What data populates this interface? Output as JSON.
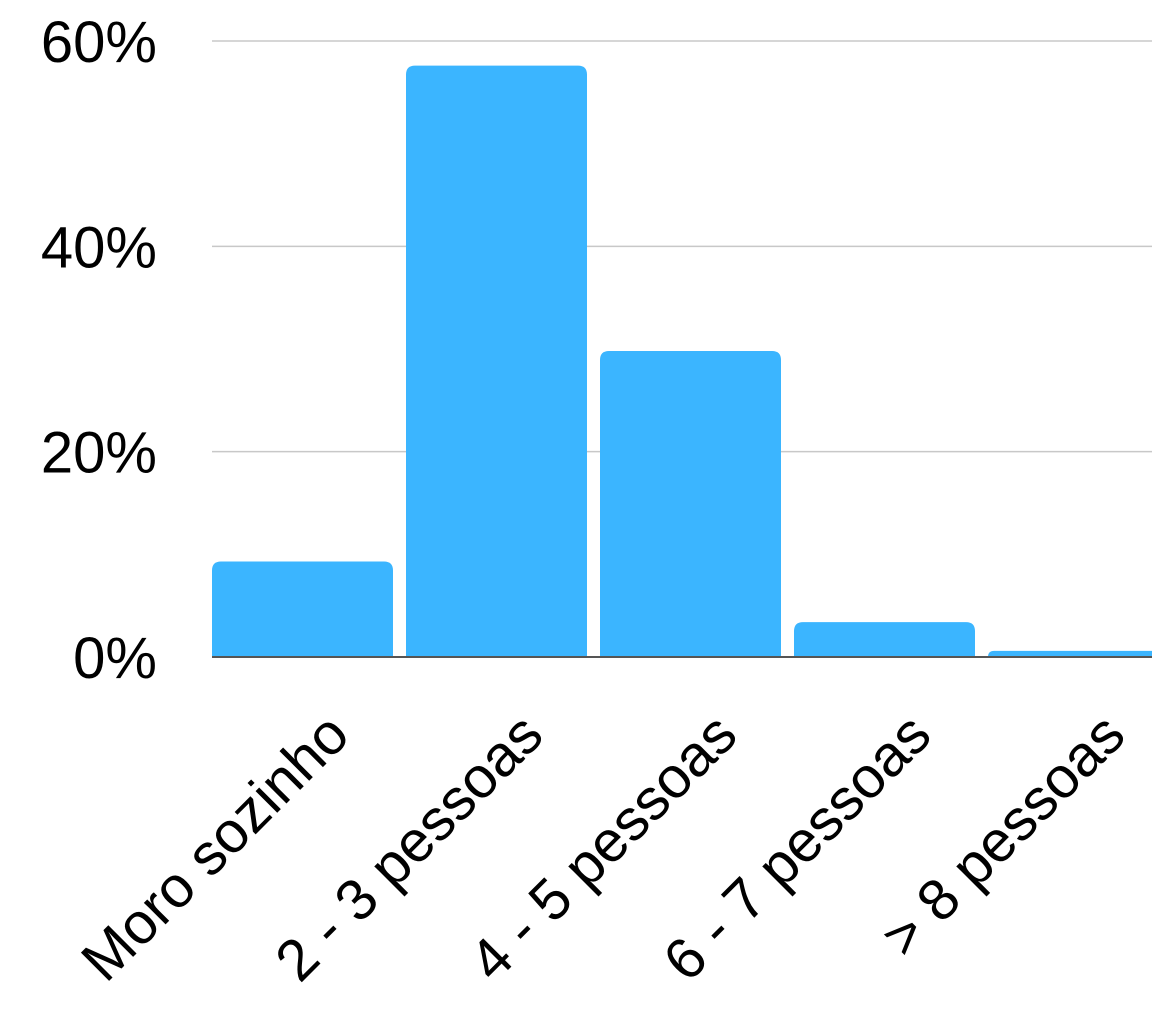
{
  "chart_data": {
    "type": "bar",
    "categories": [
      "Moro sozinho",
      "2 - 3 pessoas",
      "4 - 5 pessoas",
      "6 - 7 pessoas",
      "> 8 pessoas"
    ],
    "values": [
      9.3,
      57.6,
      29.8,
      3.4,
      0.6
    ],
    "y_ticks": [
      "0%",
      "20%",
      "40%",
      "60%"
    ],
    "y_tick_values": [
      0,
      20,
      40,
      60
    ],
    "ylim": [
      0,
      60
    ],
    "unit": "%",
    "grid": true,
    "legend": "none",
    "bar_color": "#3bb5ff",
    "grid_color": "#c8c8c8",
    "axis_color": "#555555"
  }
}
